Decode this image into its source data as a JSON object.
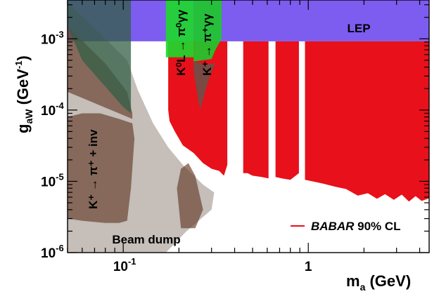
{
  "chart_data": {
    "type": "area",
    "title": "",
    "xlabel_main": "m",
    "xlabel_sub": "a",
    "xlabel_unit": " (GeV)",
    "ylabel_main": "g",
    "ylabel_sub": "aW",
    "ylabel_unit_open": " (GeV",
    "ylabel_unit_sup": "-1",
    "ylabel_unit_close": ")",
    "xscale": "log",
    "yscale": "log",
    "xlim": [
      0.05,
      4.5
    ],
    "ylim": [
      1e-06,
      0.0035
    ],
    "x_ticks": [
      {
        "value": 0.1,
        "base": "10",
        "exp": "-1"
      },
      {
        "value": 1,
        "base": "1",
        "exp": ""
      }
    ],
    "y_ticks": [
      {
        "value": 0.001,
        "base": "10",
        "exp": "-3"
      },
      {
        "value": 0.0001,
        "base": "10",
        "exp": "-4"
      },
      {
        "value": 1e-05,
        "base": "10",
        "exp": "-5"
      },
      {
        "value": 1e-06,
        "base": "10",
        "exp": "-6"
      }
    ],
    "legend": {
      "position": "bottom-right",
      "entries": [
        {
          "italic": "BABAR",
          "text": " 90% CL",
          "color": "#e8101a"
        }
      ]
    },
    "labels": {
      "lep": "LEP",
      "beam_dump": "Beam dump",
      "kpinv": "K⁺ → π⁺ + inv",
      "kl": "K⁰L → π⁰γγ",
      "kp": "K⁺ → π⁺γγ"
    },
    "regions": [
      {
        "name": "LEP",
        "color": "#7d5cf0",
        "points": [
          [
            0.05,
            0.0035
          ],
          [
            4.5,
            0.0035
          ],
          [
            4.5,
            0.00092
          ],
          [
            0.05,
            0.00092
          ]
        ]
      },
      {
        "name": "BABAR 90% CL",
        "color": "#e8101a",
        "points": [
          [
            0.175,
            0.00092
          ],
          [
            0.365,
            0.00092
          ],
          [
            0.365,
            1.7e-05
          ],
          [
            0.35,
            1.2e-05
          ],
          [
            0.33,
            1.4e-05
          ],
          [
            0.3,
            1.5e-05
          ],
          [
            0.27,
            1.8e-05
          ],
          [
            0.24,
            2.5e-05
          ],
          [
            0.21,
            3.2e-05
          ],
          [
            0.19,
            5e-05
          ],
          [
            0.178,
            7e-05
          ],
          [
            0.175,
            0.0001
          ]
        ]
      },
      {
        "name": "BABAR 90% CL",
        "color": "#e8101a",
        "points": [
          [
            0.445,
            0.00092
          ],
          [
            0.61,
            0.00092
          ],
          [
            0.61,
            1.1e-05
          ],
          [
            0.56,
            1.15e-05
          ],
          [
            0.5,
            1.2e-05
          ],
          [
            0.47,
            1.3e-05
          ],
          [
            0.445,
            1.3e-05
          ]
        ]
      },
      {
        "name": "BABAR 90% CL",
        "color": "#e8101a",
        "points": [
          [
            0.665,
            0.00092
          ],
          [
            0.89,
            0.00092
          ],
          [
            0.89,
            1.3e-05
          ],
          [
            0.8,
            1.05e-05
          ],
          [
            0.72,
            1.1e-05
          ],
          [
            0.665,
            1.15e-05
          ]
        ]
      },
      {
        "name": "BABAR 90% CL",
        "color": "#e8101a",
        "points": [
          [
            0.96,
            0.00092
          ],
          [
            4.5,
            0.00092
          ],
          [
            4.5,
            5.8e-06
          ],
          [
            4.1,
            5.3e-06
          ],
          [
            3.8,
            6.2e-06
          ],
          [
            3.5,
            5.2e-06
          ],
          [
            3.2,
            6.5e-06
          ],
          [
            2.9,
            5.5e-06
          ],
          [
            2.6,
            6.6e-06
          ],
          [
            2.35,
            5.7e-06
          ],
          [
            2.1,
            6.8e-06
          ],
          [
            1.85,
            6.3e-06
          ],
          [
            1.6,
            7.8e-06
          ],
          [
            1.4,
            8.4e-06
          ],
          [
            1.2,
            9.3e-06
          ],
          [
            1.05,
            1e-05
          ],
          [
            0.96,
            1.05e-05
          ]
        ]
      },
      {
        "name": "K+ → π+ + inv",
        "color": "rgba(120,75,55,0.72)",
        "points": [
          [
            0.05,
            2.2e-05
          ],
          [
            0.05,
            3e-06
          ],
          [
            0.06,
            2.8e-06
          ],
          [
            0.08,
            2.6e-06
          ],
          [
            0.095,
            2.6e-06
          ],
          [
            0.105,
            2.8e-06
          ],
          [
            0.11,
            8e-06
          ],
          [
            0.115,
            4e-05
          ],
          [
            0.112,
            6.5e-05
          ],
          [
            0.095,
            7.5e-05
          ],
          [
            0.075,
            9e-05
          ],
          [
            0.06,
            9e-05
          ],
          [
            0.05,
            8e-05
          ]
        ]
      },
      {
        "name": "K+ → π+ + inv",
        "color": "rgba(120,75,55,0.72)",
        "points": [
          [
            0.205,
            1.5e-05
          ],
          [
            0.225,
            1.8e-05
          ],
          [
            0.245,
            1.2e-05
          ],
          [
            0.27,
            4e-06
          ],
          [
            0.245,
            2.2e-06
          ],
          [
            0.205,
            2.2e-06
          ],
          [
            0.195,
            8e-06
          ]
        ]
      },
      {
        "name": "K+ → π+ + inv",
        "color": "rgba(120,75,55,0.72)",
        "points": [
          [
            0.05,
            0.0015
          ],
          [
            0.08,
            0.00045
          ],
          [
            0.105,
            0.00018
          ],
          [
            0.112,
            9e-05
          ],
          [
            0.112,
            7.5e-05
          ],
          [
            0.05,
            0.00018
          ]
        ]
      },
      {
        "name": "Beam dump",
        "color": "rgba(90,70,55,0.35)",
        "points": [
          [
            0.05,
            0.0033
          ],
          [
            0.105,
            0.0005
          ],
          [
            0.12,
            0.00019
          ],
          [
            0.145,
            6.5e-05
          ],
          [
            0.175,
            3e-05
          ],
          [
            0.21,
            1.7e-05
          ],
          [
            0.27,
            9e-06
          ],
          [
            0.31,
            7e-06
          ],
          [
            0.3,
            4e-06
          ],
          [
            0.22,
            2e-06
          ],
          [
            0.17,
            1e-06
          ],
          [
            0.05,
            1e-06
          ]
        ]
      },
      {
        "name": "K0L → π0γγ",
        "color": "rgba(30,215,45,0.92)",
        "points": [
          [
            0.17,
            0.0035
          ],
          [
            0.24,
            0.0035
          ],
          [
            0.24,
            0.00055
          ],
          [
            0.17,
            0.00055
          ]
        ]
      },
      {
        "name": "K+ → π+γγ",
        "color": "rgba(30,200,45,0.92)",
        "points": [
          [
            0.24,
            0.0035
          ],
          [
            0.34,
            0.0035
          ],
          [
            0.34,
            0.001
          ],
          [
            0.315,
            0.0007
          ],
          [
            0.3,
            0.00052
          ],
          [
            0.24,
            0.00048
          ]
        ]
      },
      {
        "name": "K+ → π+γγ",
        "color": "rgba(100,85,75,0.85)",
        "points": [
          [
            0.24,
            0.00048
          ],
          [
            0.28,
            0.00044
          ],
          [
            0.315,
            0.00045
          ],
          [
            0.3,
            0.00035
          ],
          [
            0.28,
            0.0002
          ],
          [
            0.26,
            0.0001
          ],
          [
            0.24,
            0.00035
          ]
        ]
      },
      {
        "name": "gray-green overlay",
        "color": "rgba(50,95,70,0.75)",
        "points": [
          [
            0.05,
            0.0035
          ],
          [
            0.11,
            0.0035
          ],
          [
            0.11,
            9e-05
          ],
          [
            0.1,
            0.00011
          ],
          [
            0.06,
            0.0005
          ],
          [
            0.05,
            0.0015
          ]
        ]
      }
    ]
  }
}
